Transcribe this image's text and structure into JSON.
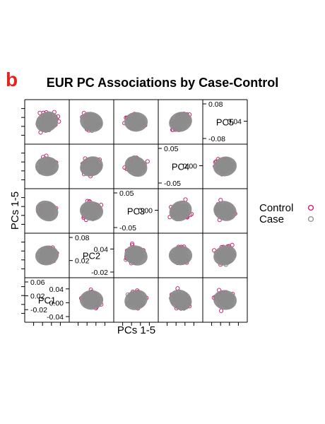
{
  "figure": {
    "panel_letter": "b"
  },
  "chart_data": {
    "type": "scatter",
    "subtype": "scatterplot-matrix",
    "title": "EUR PC Associations by Case-Control",
    "xlabel": "PCs 1-5",
    "ylabel": "PCs 1-5",
    "variables": [
      "PC1",
      "PC2",
      "PC3",
      "PC4",
      "PC5"
    ],
    "diagonal_ticks": {
      "PC1": [
        "0.06",
        "0.04",
        "0.02",
        "0.00",
        "-0.02",
        "-0.04"
      ],
      "PC2": [
        "0.08",
        "0.04",
        "0.02",
        "-0.02"
      ],
      "PC3": [
        "0.05",
        "0.00",
        "-0.05"
      ],
      "PC4": [
        "0.05",
        "0.00",
        "-0.05"
      ],
      "PC5": [
        "0.08",
        "0.04",
        "-0.08"
      ]
    },
    "series": [
      {
        "name": "Control",
        "color": "#c8106e",
        "marker": "open-circle"
      },
      {
        "name": "Case",
        "color": "#8c8c8c",
        "marker": "open-circle"
      }
    ],
    "legend": "right",
    "grid": false
  }
}
